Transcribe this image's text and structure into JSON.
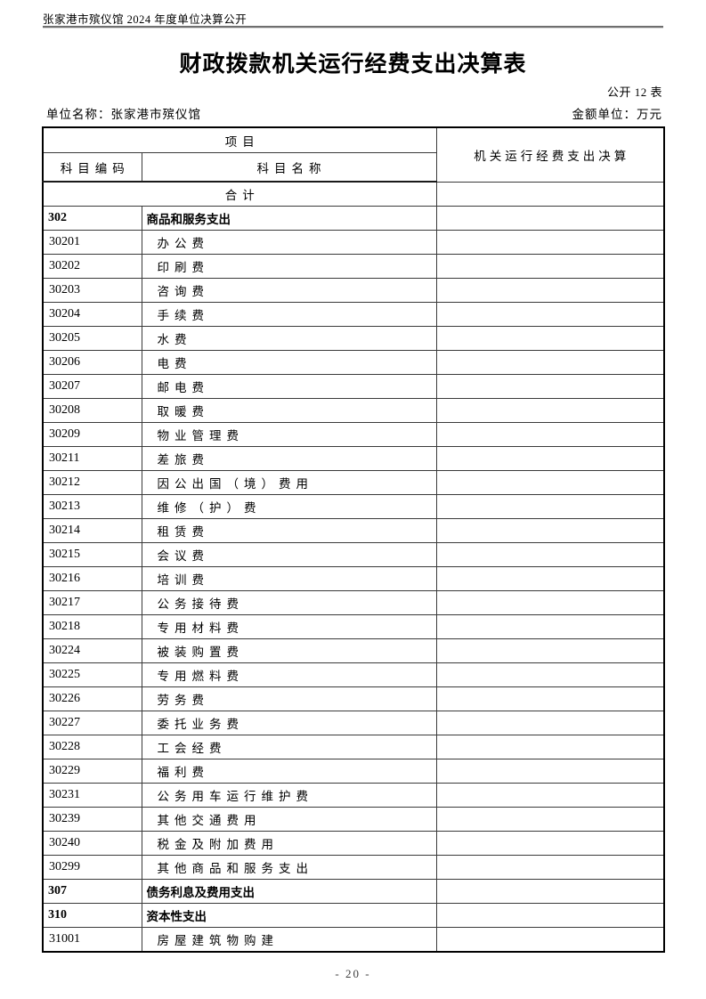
{
  "page": {
    "header_note": "张家港市殡仪馆 2024 年度单位决算公开",
    "title": "财政拨款机关运行经费支出决算表",
    "table_no": "公开 12 表",
    "unit_name": "单位名称：张家港市殡仪馆",
    "amount_unit": "金额单位：万元",
    "page_number": "- 20 -"
  },
  "colors": {
    "outer_border": "#000000",
    "inner_border": "#3a3a3a",
    "header_rule": "#6f6f6f"
  },
  "table": {
    "header": {
      "project": "项目",
      "code": "科目编码",
      "name": "科目名称",
      "value_col": "机关运行经费支出决算"
    },
    "total_row": {
      "label": "合计",
      "value": ""
    },
    "rows": [
      {
        "code": "302",
        "name": "商品和服务支出",
        "bold": true,
        "value": ""
      },
      {
        "code": "30201",
        "name": "办公费",
        "bold": false,
        "value": ""
      },
      {
        "code": "30202",
        "name": "印刷费",
        "bold": false,
        "value": ""
      },
      {
        "code": "30203",
        "name": "咨询费",
        "bold": false,
        "value": ""
      },
      {
        "code": "30204",
        "name": "手续费",
        "bold": false,
        "value": ""
      },
      {
        "code": "30205",
        "name": "水费",
        "bold": false,
        "value": ""
      },
      {
        "code": "30206",
        "name": "电费",
        "bold": false,
        "value": ""
      },
      {
        "code": "30207",
        "name": "邮电费",
        "bold": false,
        "value": ""
      },
      {
        "code": "30208",
        "name": "取暖费",
        "bold": false,
        "value": ""
      },
      {
        "code": "30209",
        "name": "物业管理费",
        "bold": false,
        "value": ""
      },
      {
        "code": "30211",
        "name": "差旅费",
        "bold": false,
        "value": ""
      },
      {
        "code": "30212",
        "name": "因公出国（境）费用",
        "bold": false,
        "value": ""
      },
      {
        "code": "30213",
        "name": "维修（护）费",
        "bold": false,
        "value": ""
      },
      {
        "code": "30214",
        "name": "租赁费",
        "bold": false,
        "value": ""
      },
      {
        "code": "30215",
        "name": "会议费",
        "bold": false,
        "value": ""
      },
      {
        "code": "30216",
        "name": "培训费",
        "bold": false,
        "value": ""
      },
      {
        "code": "30217",
        "name": "公务接待费",
        "bold": false,
        "value": ""
      },
      {
        "code": "30218",
        "name": "专用材料费",
        "bold": false,
        "value": ""
      },
      {
        "code": "30224",
        "name": "被装购置费",
        "bold": false,
        "value": ""
      },
      {
        "code": "30225",
        "name": "专用燃料费",
        "bold": false,
        "value": ""
      },
      {
        "code": "30226",
        "name": "劳务费",
        "bold": false,
        "value": ""
      },
      {
        "code": "30227",
        "name": "委托业务费",
        "bold": false,
        "value": ""
      },
      {
        "code": "30228",
        "name": "工会经费",
        "bold": false,
        "value": ""
      },
      {
        "code": "30229",
        "name": "福利费",
        "bold": false,
        "value": ""
      },
      {
        "code": "30231",
        "name": "公务用车运行维护费",
        "bold": false,
        "value": ""
      },
      {
        "code": "30239",
        "name": "其他交通费用",
        "bold": false,
        "value": ""
      },
      {
        "code": "30240",
        "name": "税金及附加费用",
        "bold": false,
        "value": ""
      },
      {
        "code": "30299",
        "name": "其他商品和服务支出",
        "bold": false,
        "value": ""
      },
      {
        "code": "307",
        "name": "债务利息及费用支出",
        "bold": true,
        "value": ""
      },
      {
        "code": "310",
        "name": "资本性支出",
        "bold": true,
        "value": ""
      },
      {
        "code": "31001",
        "name": "房屋建筑物购建",
        "bold": false,
        "value": ""
      }
    ]
  }
}
